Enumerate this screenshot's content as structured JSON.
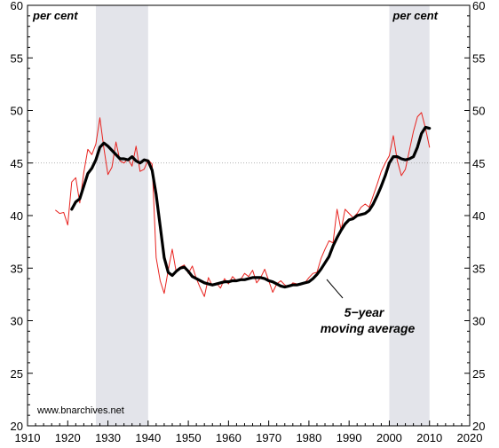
{
  "chart_data": {
    "type": "line",
    "title": "",
    "xlabel": "",
    "ylabel": "",
    "unit_label_left": "per cent",
    "unit_label_right": "per cent",
    "source": "www.bnarchives.net",
    "annotation": {
      "line1": "5−year",
      "line2": "moving average"
    },
    "xlim": [
      1910,
      2020
    ],
    "ylim": [
      20,
      60
    ],
    "x_ticks": [
      1910,
      1920,
      1930,
      1940,
      1950,
      1960,
      1970,
      1980,
      1990,
      2000,
      2010,
      2020
    ],
    "y_ticks": [
      20,
      25,
      30,
      35,
      40,
      45,
      50,
      55,
      60
    ],
    "reference_line": 45,
    "shaded_periods": [
      [
        1927,
        1940
      ],
      [
        2000,
        2010
      ]
    ],
    "colors": {
      "annual": "#e8231f",
      "average": "#000000",
      "shade": "#e3e4ea",
      "reference": "#9a9a9a"
    },
    "series": [
      {
        "x": [
          1917,
          1918,
          1919,
          1920,
          1921,
          1922,
          1923,
          1924,
          1925,
          1926,
          1927,
          1928,
          1929,
          1930,
          1931,
          1932,
          1933,
          1934,
          1935,
          1936,
          1937,
          1938,
          1939,
          1940,
          1941,
          1942,
          1943,
          1944,
          1945,
          1946,
          1947,
          1948,
          1949,
          1950,
          1951,
          1952,
          1953,
          1954,
          1955,
          1956,
          1957,
          1958,
          1959,
          1960,
          1961,
          1962,
          1963,
          1964,
          1965,
          1966,
          1967,
          1968,
          1969,
          1970,
          1971,
          1972,
          1973,
          1974,
          1975,
          1976,
          1977,
          1978,
          1979,
          1980,
          1981,
          1982,
          1983,
          1984,
          1985,
          1986,
          1987,
          1988,
          1989,
          1990,
          1991,
          1992,
          1993,
          1994,
          1995,
          1996,
          1997,
          1998,
          1999,
          2000,
          2001,
          2002,
          2003,
          2004,
          2005,
          2006,
          2007,
          2008,
          2009,
          2010
        ],
        "values": [
          40.5,
          40.2,
          40.3,
          39.1,
          43.2,
          43.6,
          41.2,
          44.1,
          46.3,
          45.8,
          46.8,
          49.3,
          46.4,
          43.9,
          44.6,
          47.0,
          45.2,
          45.0,
          45.4,
          44.7,
          46.6,
          44.2,
          44.4,
          45.3,
          44.9,
          36.0,
          33.8,
          32.6,
          34.8,
          36.8,
          34.6,
          35.1,
          35.3,
          34.5,
          35.2,
          34.0,
          33.1,
          32.3,
          34.1,
          33.3,
          33.6,
          33.1,
          34.0,
          33.5,
          34.2,
          33.8,
          33.9,
          34.5,
          34.2,
          34.8,
          33.6,
          34.1,
          34.9,
          33.8,
          32.7,
          33.5,
          33.8,
          33.4,
          33.2,
          33.6,
          33.5,
          33.4,
          33.6,
          34.1,
          34.5,
          34.6,
          35.9,
          36.8,
          37.6,
          37.4,
          40.6,
          38.6,
          40.6,
          40.2,
          39.8,
          40.2,
          40.8,
          41.1,
          40.8,
          41.9,
          43.0,
          44.2,
          45.0,
          45.7,
          47.6,
          45.2,
          43.8,
          44.4,
          46.2,
          48.0,
          49.4,
          49.8,
          48.3,
          46.5
        ],
        "line_width": 1
      },
      {
        "x": [
          1921,
          1922,
          1923,
          1924,
          1925,
          1926,
          1927,
          1928,
          1929,
          1930,
          1931,
          1932,
          1933,
          1934,
          1935,
          1936,
          1937,
          1938,
          1939,
          1940,
          1941,
          1942,
          1943,
          1944,
          1945,
          1946,
          1947,
          1948,
          1949,
          1950,
          1951,
          1952,
          1953,
          1954,
          1955,
          1956,
          1957,
          1958,
          1959,
          1960,
          1961,
          1962,
          1963,
          1964,
          1965,
          1966,
          1967,
          1968,
          1969,
          1970,
          1971,
          1972,
          1973,
          1974,
          1975,
          1976,
          1977,
          1978,
          1979,
          1980,
          1981,
          1982,
          1983,
          1984,
          1985,
          1986,
          1987,
          1988,
          1989,
          1990,
          1991,
          1992,
          1993,
          1994,
          1995,
          1996,
          1997,
          1998,
          1999,
          2000,
          2001,
          2002,
          2003,
          2004,
          2005,
          2006,
          2007,
          2008,
          2009,
          2010
        ],
        "values": [
          40.6,
          41.3,
          41.6,
          42.8,
          44.0,
          44.5,
          45.3,
          46.5,
          46.9,
          46.6,
          46.2,
          45.8,
          45.4,
          45.4,
          45.3,
          45.6,
          45.2,
          45.0,
          45.3,
          45.2,
          44.3,
          42.0,
          39.0,
          36.0,
          34.6,
          34.3,
          34.7,
          35.0,
          35.1,
          34.7,
          34.2,
          34.0,
          33.8,
          33.6,
          33.5,
          33.4,
          33.5,
          33.6,
          33.7,
          33.7,
          33.8,
          33.8,
          33.9,
          33.9,
          34.0,
          34.1,
          34.1,
          34.1,
          34.0,
          33.8,
          33.7,
          33.5,
          33.3,
          33.2,
          33.3,
          33.4,
          33.4,
          33.5,
          33.6,
          33.7,
          34.0,
          34.4,
          34.9,
          35.5,
          36.1,
          37.1,
          37.9,
          38.6,
          39.2,
          39.6,
          39.7,
          40.0,
          40.1,
          40.2,
          40.5,
          41.1,
          41.9,
          42.8,
          43.8,
          45.0,
          45.6,
          45.6,
          45.4,
          45.3,
          45.4,
          45.6,
          46.5,
          47.8,
          48.4,
          48.3
        ],
        "line_width": 3.2
      }
    ]
  }
}
